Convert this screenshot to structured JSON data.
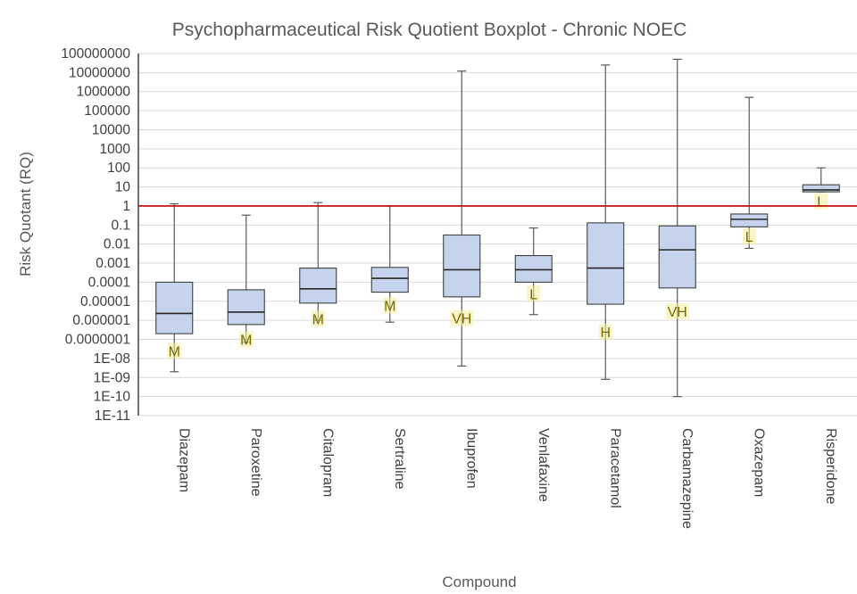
{
  "chart_data": {
    "type": "boxplot",
    "title": "Psychopharmaceutical Risk Quotient Boxplot - Chronic NOEC",
    "xlabel": "Compound",
    "ylabel": "Risk Quotant (RQ)",
    "y_scale": "log10",
    "ylim": [
      1e-11,
      100000000
    ],
    "y_tick_labels": [
      "100000000",
      "10000000",
      "1000000",
      "100000",
      "10000",
      "1000",
      "100",
      "10",
      "1",
      "0.1",
      "0.01",
      "0.001",
      "0.0001",
      "0.00001",
      "0.000001",
      "0.0000001",
      "1E-08",
      "1E-09",
      "1E-10",
      "1E-11"
    ],
    "grid": true,
    "threshold": {
      "value": 1,
      "color": "#c00000"
    },
    "box_fill": "#c5d3ec",
    "box_stroke": "#404040",
    "label_highlight": "#f2ef9a",
    "categories": [
      "Diazepam",
      "Paroxetine",
      "Citalopram",
      "Sertraline",
      "Ibuprofen",
      "Venlafaxine",
      "Paracetamol",
      "Carbamazepine",
      "Oxazepam",
      "Risperidone"
    ],
    "boxes": [
      {
        "name": "Diazepam",
        "min": 2e-09,
        "q1": 2e-07,
        "median": 2.3e-06,
        "q3": 0.0001,
        "max": 1.3,
        "risk": "M",
        "risk_at": 2.5e-08
      },
      {
        "name": "Paroxetine",
        "min": 7e-08,
        "q1": 6e-07,
        "median": 2.7e-06,
        "q3": 4e-05,
        "max": 0.33,
        "risk": "M",
        "risk_at": 1e-07
      },
      {
        "name": "Citalopram",
        "min": 1e-06,
        "q1": 8e-06,
        "median": 4.5e-05,
        "q3": 0.00055,
        "max": 1.5,
        "risk": "M",
        "risk_at": 1.2e-06
      },
      {
        "name": "Sertraline",
        "min": 8e-07,
        "q1": 3e-05,
        "median": 0.00016,
        "q3": 0.0006,
        "max": 1,
        "risk": "M",
        "risk_at": 6e-06
      },
      {
        "name": "Ibuprofen",
        "min": 4e-09,
        "q1": 1.7e-05,
        "median": 0.00045,
        "q3": 0.03,
        "max": 12000000,
        "risk": "VH",
        "risk_at": 1.3e-06
      },
      {
        "name": "Venlafaxine",
        "min": 2e-06,
        "q1": 0.0001,
        "median": 0.00045,
        "q3": 0.0025,
        "max": 0.07,
        "risk": "L",
        "risk_at": 2.5e-05
      },
      {
        "name": "Paracetamol",
        "min": 8e-10,
        "q1": 7e-06,
        "median": 0.00055,
        "q3": 0.13,
        "max": 25000000,
        "risk": "H",
        "risk_at": 2.5e-07
      },
      {
        "name": "Carbamazepine",
        "min": 1e-10,
        "q1": 5e-05,
        "median": 0.005,
        "q3": 0.09,
        "max": 50000000,
        "risk": "VH",
        "risk_at": 3e-06
      },
      {
        "name": "Oxazepam",
        "min": 0.006,
        "q1": 0.08,
        "median": 0.2,
        "q3": 0.38,
        "max": 500000,
        "risk": "L",
        "risk_at": 0.025
      },
      {
        "name": "Risperidone",
        "min": 5.5,
        "q1": 5.5,
        "median": 7,
        "q3": 13,
        "max": 100,
        "risk": "L",
        "risk_at": 1.8
      }
    ]
  }
}
